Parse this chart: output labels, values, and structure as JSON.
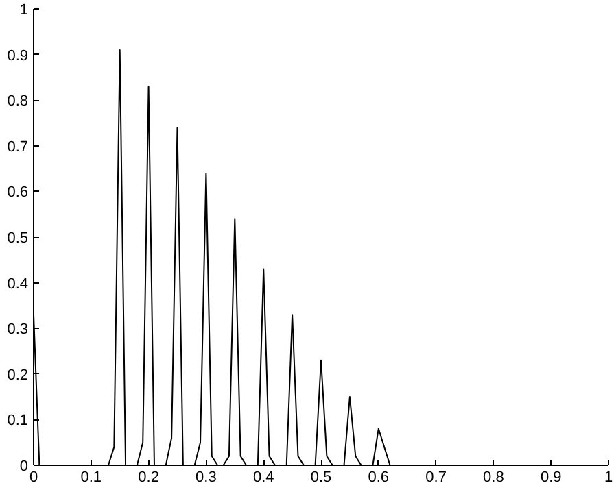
{
  "chart_data": {
    "type": "line",
    "x": [
      0,
      0.01,
      0.13,
      0.14,
      0.15,
      0.16,
      0.18,
      0.19,
      0.2,
      0.21,
      0.23,
      0.24,
      0.25,
      0.26,
      0.28,
      0.29,
      0.3,
      0.31,
      0.32,
      0.33,
      0.34,
      0.35,
      0.36,
      0.37,
      0.39,
      0.4,
      0.41,
      0.42,
      0.44,
      0.45,
      0.46,
      0.47,
      0.49,
      0.5,
      0.51,
      0.52,
      0.54,
      0.55,
      0.56,
      0.57,
      0.59,
      0.6,
      0.62
    ],
    "series": [
      {
        "color": "#000000",
        "values": [
          0.33,
          0,
          0,
          0.04,
          0.91,
          0,
          0,
          0.05,
          0.83,
          0,
          0,
          0.06,
          0.74,
          0,
          0,
          0.05,
          0.64,
          0.02,
          0,
          0,
          0.02,
          0.54,
          0.02,
          0,
          0,
          0.43,
          0.02,
          0,
          0,
          0.33,
          0.02,
          0,
          0,
          0.23,
          0.02,
          0,
          0,
          0.15,
          0.02,
          0,
          0,
          0.08,
          0
        ]
      }
    ],
    "xlim": [
      0,
      1
    ],
    "ylim": [
      0,
      1
    ],
    "xticks": [
      0,
      0.1,
      0.2,
      0.3,
      0.4,
      0.5,
      0.6,
      0.7,
      0.8,
      0.9,
      1
    ],
    "yticks": [
      0,
      0.1,
      0.2,
      0.3,
      0.4,
      0.5,
      0.6,
      0.7,
      0.8,
      0.9,
      1
    ],
    "grid": false
  }
}
